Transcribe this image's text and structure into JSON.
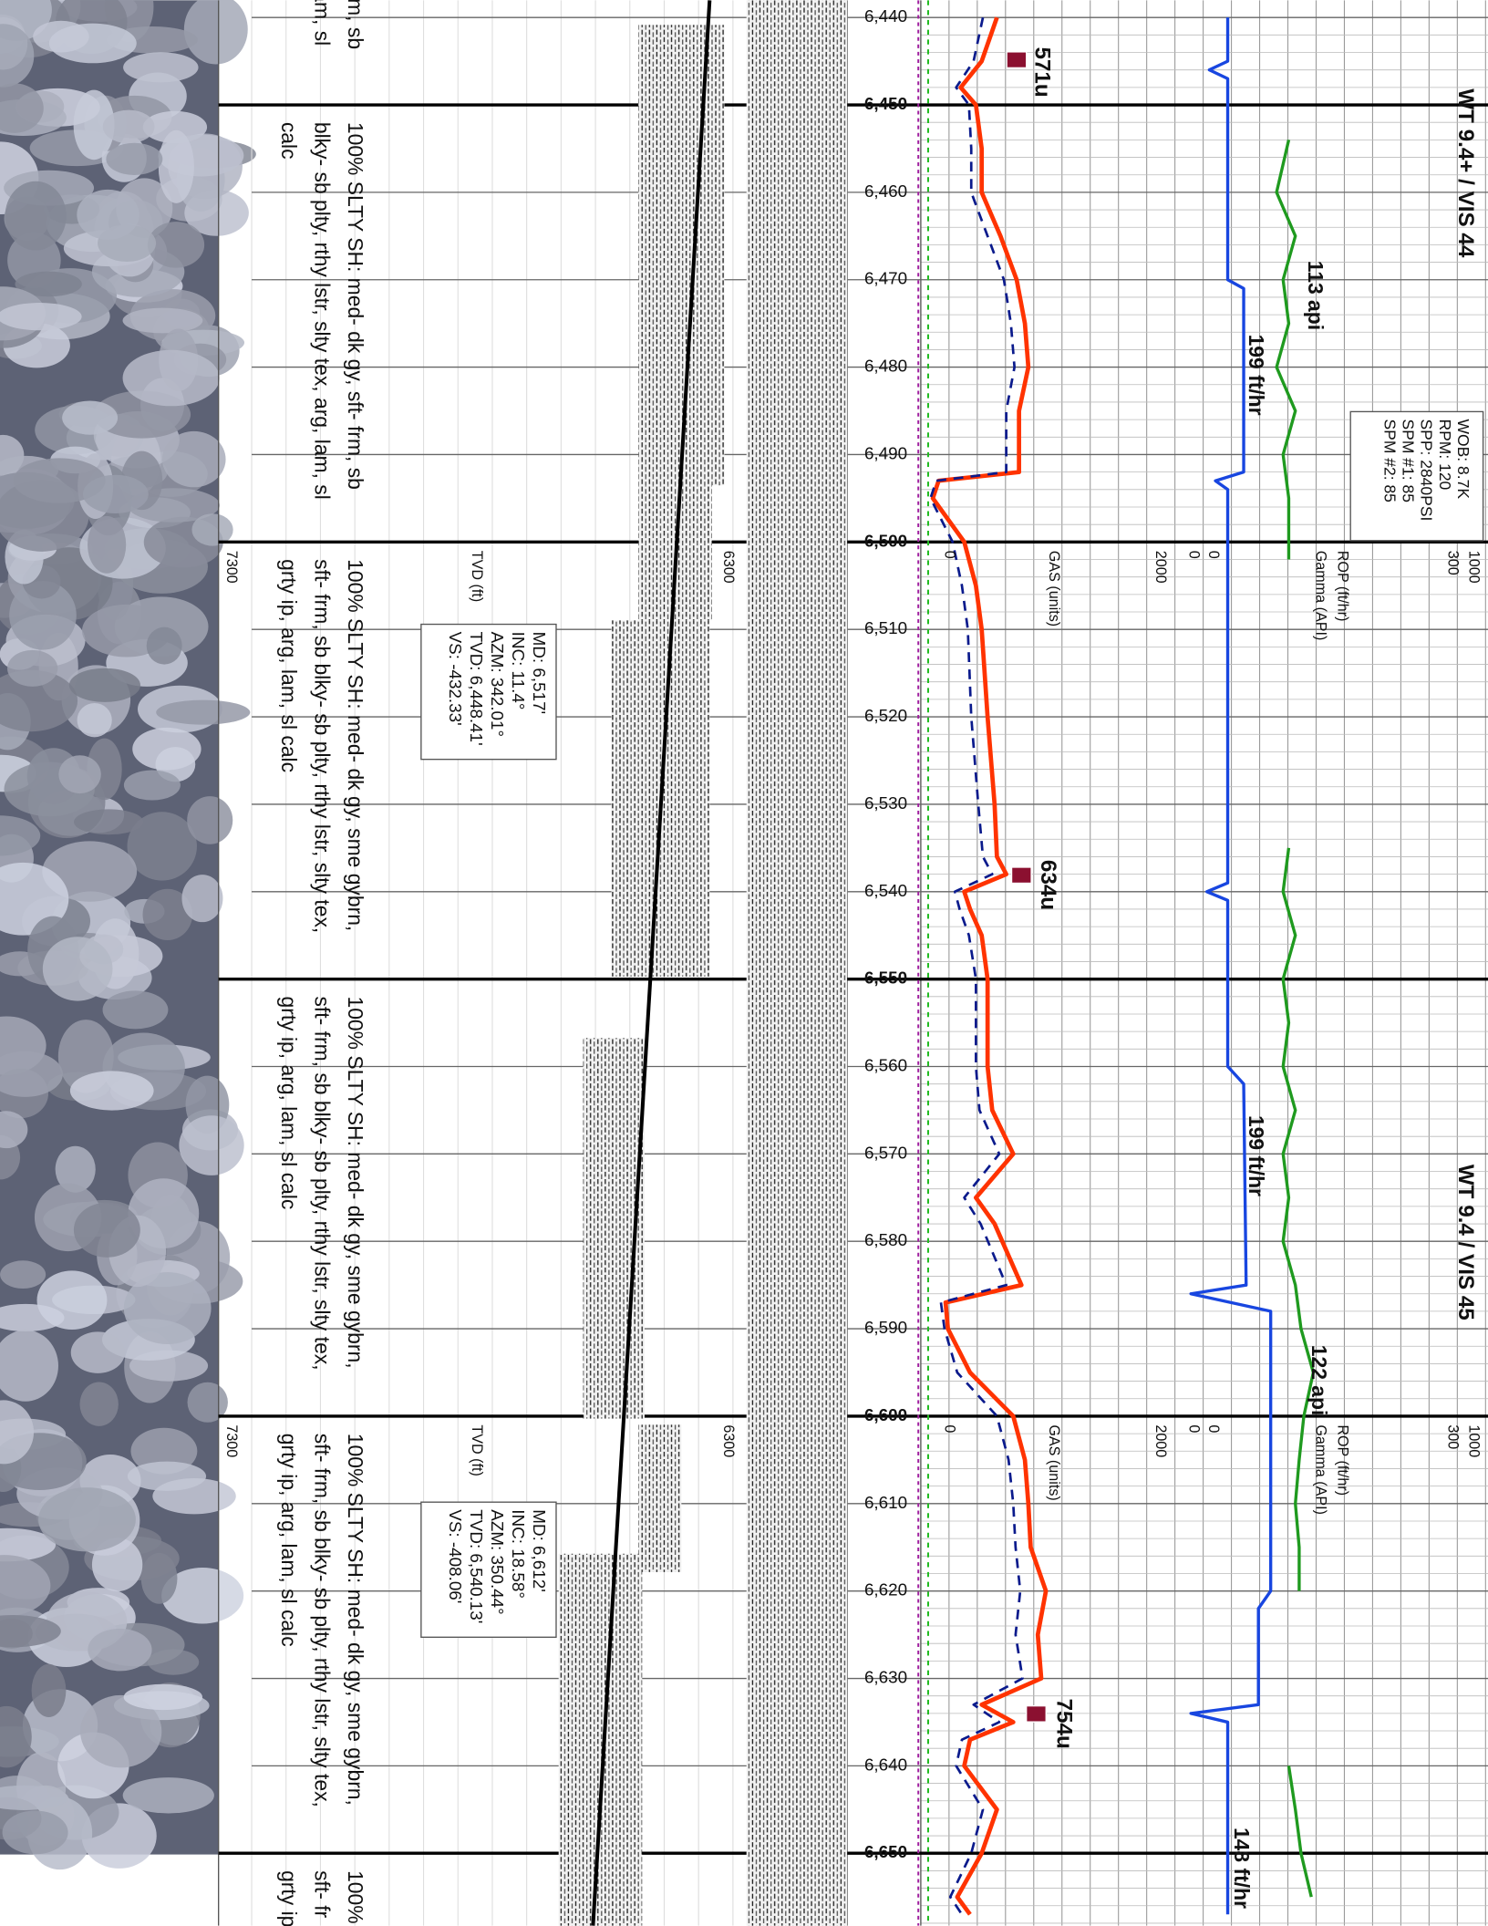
{
  "depth_track": {
    "ticks": [
      {
        "value": 6440,
        "label": "6,440"
      },
      {
        "value": 6450,
        "label": "6,450"
      },
      {
        "value": 6460,
        "label": "6,460"
      },
      {
        "value": 6470,
        "label": "6,470"
      },
      {
        "value": 6480,
        "label": "6,480"
      },
      {
        "value": 6490,
        "label": "6,490"
      },
      {
        "value": 6500,
        "label": "6,500"
      },
      {
        "value": 6510,
        "label": "6,510"
      },
      {
        "value": 6520,
        "label": "6,520"
      },
      {
        "value": 6530,
        "label": "6,530"
      },
      {
        "value": 6540,
        "label": "6,540"
      },
      {
        "value": 6550,
        "label": "6,550"
      },
      {
        "value": 6560,
        "label": "6,560"
      },
      {
        "value": 6570,
        "label": "6,570"
      },
      {
        "value": 6580,
        "label": "6,580"
      },
      {
        "value": 6590,
        "label": "6,590"
      },
      {
        "value": 6600,
        "label": "6,600"
      },
      {
        "value": 6610,
        "label": "6,610"
      },
      {
        "value": 6620,
        "label": "6,620"
      },
      {
        "value": 6630,
        "label": "6,630"
      },
      {
        "value": 6640,
        "label": "6,640"
      },
      {
        "value": 6650,
        "label": "6,650"
      }
    ]
  },
  "descriptions": [
    [
      "frm, sb",
      "lam, sl"
    ],
    [
      "100% SLTY SH: med- dk gy, sft- frm, sb",
      "blky- sb plty, rthy lstr, slty tex, arg, lam, sl",
      "calc"
    ],
    [
      "100% SLTY SH: med- dk gy, sme gybrn,",
      "sft- frm, sb blky- sb plty, rthy lstr, slty tex,",
      "grty ip, arg, lam, sl calc"
    ],
    [
      "100% SLTY SH: med- dk gy, sme gybrn,",
      "sft- frm, sb blky- sb plty, rthy lstr, slty tex,",
      "grty ip, arg, lam, sl calc"
    ],
    [
      "100% SLTY SH: med- dk gy, sme gybrn,",
      "sft- frm, sb blky- sb plty, rthy lstr, slty tex,",
      "grty ip, arg, lam, sl calc"
    ],
    [
      "100%",
      "sft- fr",
      "grty ip"
    ]
  ],
  "surveys": [
    [
      "MD: 6,517'",
      "INC: 11.4°",
      "AZM: 342.01°",
      "TVD: 6,448.41'",
      "VS: -432.33'"
    ],
    [
      "MD: 6,612'",
      "INC: 18.58°",
      "AZM: 350.44°",
      "TVD: 6,540.13'",
      "VS: -408.06'"
    ]
  ],
  "scale_headers": [
    {
      "tvd_min": 7300,
      "tvd_label": "TVD (ft)",
      "tvd_max": 6300,
      "gas_min": 0,
      "gas_label": "GAS (units)",
      "gas_max": 2000,
      "gamma_min": 0,
      "rop_min": 0,
      "rop_label": "ROP (ft/hr)",
      "gamma_label": "Gamma (API)",
      "rop_max": 1000,
      "gamma_max": 300
    },
    {
      "tvd_min": 7300,
      "tvd_label": "TVD (ft)",
      "tvd_max": 6300,
      "gas_min": 0,
      "gas_label": "GAS (units)",
      "gas_max": 2000,
      "gamma_min": 0,
      "rop_min": 0,
      "rop_label": "ROP (ft/hr)",
      "gamma_label": "Gamma (API)",
      "rop_max": 1000,
      "gamma_max": 300
    }
  ],
  "gas_peaks": [
    "571u",
    "634u",
    "754u"
  ],
  "rop_notes": [
    "199 ft/hr",
    "199 ft/hr",
    "148 ft/hr"
  ],
  "gamma_notes": [
    "113 api",
    "122 api"
  ],
  "mud_notes": [
    "WT 9.4+ / VIS 44",
    "WT 9.4 / VIS 45"
  ],
  "drilling_params": [
    "WOB: 8.7K",
    "RPM: 120",
    "SPP: 2840PSI",
    "SPM #1: 85",
    "SPM #2: 85"
  ],
  "curves": {
    "gas": {
      "color": "#ff3300",
      "depth": [
        6440,
        6445,
        6448,
        6450,
        6455,
        6460,
        6465,
        6470,
        6475,
        6480,
        6485,
        6492,
        6493,
        6495,
        6500,
        6505,
        6510,
        6520,
        6530,
        6536,
        6538,
        6540,
        6542,
        6545,
        6550,
        6560,
        6565,
        6570,
        6575,
        6578,
        6585,
        6587,
        6590,
        6595,
        6600,
        6605,
        6610,
        6615,
        6620,
        6625,
        6630,
        6633,
        6635,
        6637,
        6640,
        6645,
        6650,
        6655,
        6657
      ],
      "values": [
        600,
        470,
        290,
        420,
        470,
        470,
        630,
        770,
        840,
        870,
        790,
        790,
        100,
        50,
        320,
        420,
        470,
        520,
        580,
        600,
        680,
        320,
        370,
        470,
        520,
        520,
        560,
        740,
        420,
        580,
        810,
        160,
        180,
        370,
        740,
        840,
        870,
        890,
        1020,
        950,
        980,
        470,
        740,
        370,
        320,
        600,
        470,
        260,
        370
      ]
    },
    "gas_2": {
      "color": "#0a1a8c",
      "depth": [
        6440,
        6445,
        6448,
        6450,
        6455,
        6460,
        6465,
        6470,
        6475,
        6480,
        6485,
        6492,
        6493,
        6495,
        6500,
        6505,
        6510,
        6520,
        6530,
        6536,
        6538,
        6540,
        6542,
        6545,
        6550,
        6560,
        6565,
        6570,
        6575,
        6578,
        6585,
        6587,
        6590,
        6595,
        6600,
        6605,
        6610,
        6615,
        6620,
        6625,
        6630,
        6633,
        6635,
        6637,
        6640,
        6645,
        6650,
        6655,
        6657
      ],
      "values": [
        480,
        400,
        250,
        360,
        380,
        380,
        520,
        660,
        720,
        750,
        680,
        680,
        80,
        30,
        220,
        300,
        350,
        380,
        440,
        480,
        560,
        240,
        280,
        360,
        420,
        420,
        450,
        620,
        320,
        460,
        680,
        120,
        150,
        260,
        600,
        700,
        740,
        760,
        800,
        760,
        820,
        400,
        620,
        300,
        250,
        480,
        380,
        200,
        300
      ]
    },
    "rop": {
      "color": "#1846e0",
      "depth": [
        6440,
        6445,
        6446,
        6447,
        6470,
        6471,
        6492,
        6493,
        6494,
        6539,
        6540,
        6541,
        6560,
        6562,
        6585,
        6586,
        6588,
        6600,
        6620,
        6622,
        6633,
        6634,
        6635,
        6657
      ],
      "values": [
        175,
        175,
        100,
        175,
        175,
        240,
        240,
        125,
        175,
        175,
        90,
        175,
        175,
        240,
        250,
        25,
        350,
        350,
        350,
        300,
        300,
        25,
        175,
        175
      ]
    },
    "gamma": {
      "color": "#1f9a1f",
      "depth": [
        6454,
        6460,
        6465,
        6470,
        6475,
        6480,
        6485,
        6490,
        6495,
        6502,
        6518,
        6535,
        6540,
        6545,
        6550,
        6555,
        6560,
        6565,
        6570,
        6575,
        6580,
        6585,
        6590,
        6595,
        6600,
        6605,
        6610,
        6615,
        6620,
        6630,
        6640,
        6645,
        6650,
        6655
      ],
      "values": [
        104,
        91,
        111,
        98,
        104,
        91,
        111,
        98,
        104,
        104,
        null,
        104,
        98,
        111,
        98,
        104,
        98,
        111,
        98,
        104,
        98,
        111,
        117,
        130,
        120,
        115,
        111,
        115,
        115,
        null,
        104,
        111,
        117,
        128
      ]
    }
  }
}
